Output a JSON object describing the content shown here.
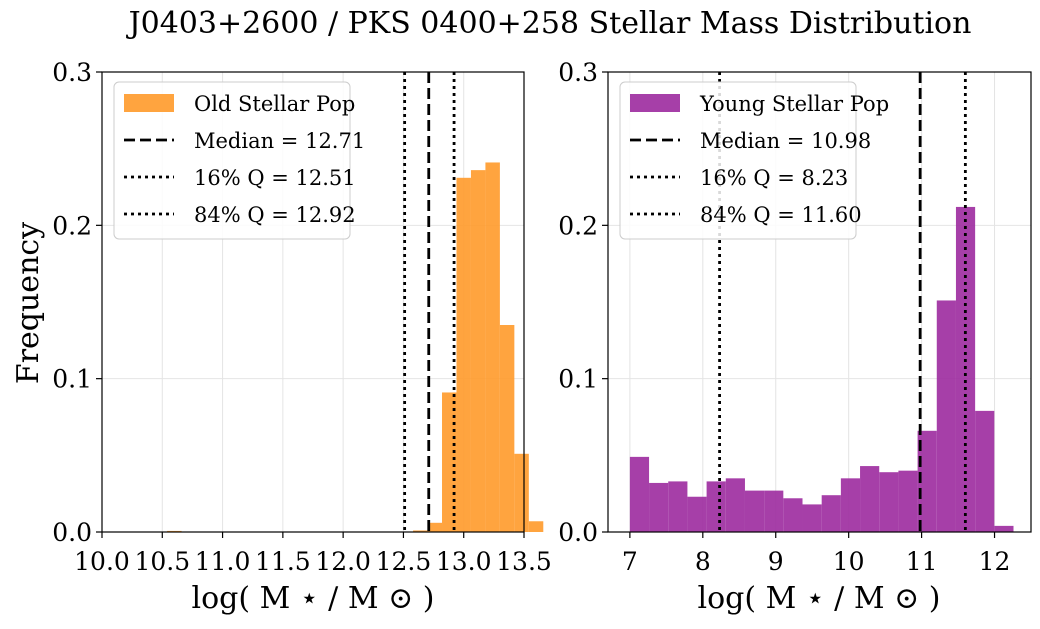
{
  "figure": {
    "title": "J0403+2600 / PKS 0400+258 Stellar Mass Distribution"
  },
  "chart_data": [
    {
      "type": "bar",
      "ylabel": "Frequency",
      "xlabel": "log( M ⋆ / M ⊙ )",
      "xlim": [
        10.0,
        13.5
      ],
      "ylim": [
        0.0,
        0.3
      ],
      "xticks": [
        "10.0",
        "10.5",
        "11.0",
        "11.5",
        "12.0",
        "12.5",
        "13.0",
        "13.5"
      ],
      "yticks": [
        "0.0",
        "0.1",
        "0.2",
        "0.3"
      ],
      "grid": true,
      "legend_position": "top-left",
      "histogram": {
        "name": "Old Stellar Pop",
        "color": "#ff9a2a",
        "bin_start": 10.06,
        "bin_width": 0.12,
        "values": [
          0.0,
          0.0,
          0.0,
          0.0,
          0.0007,
          0.0,
          0.0,
          0.0,
          0.0,
          0.0,
          0.0,
          0.0,
          0.0,
          0.0,
          0.0,
          0.0,
          0.0,
          0.0,
          0.0,
          0.0,
          0.0,
          0.001,
          0.006,
          0.091,
          0.231,
          0.236,
          0.241,
          0.135,
          0.051,
          0.007
        ]
      },
      "lines": [
        {
          "label": "Median = 12.71",
          "x": 12.71,
          "style": "dashed"
        },
        {
          "label": "16% Q = 12.51",
          "x": 12.51,
          "style": "dotted"
        },
        {
          "label": "84% Q = 12.92",
          "x": 12.92,
          "style": "dotted"
        }
      ]
    },
    {
      "type": "bar",
      "ylabel": "",
      "xlabel": "log( M ⋆ / M ⊙ )",
      "xlim": [
        6.7,
        12.5
      ],
      "ylim": [
        0.0,
        0.3
      ],
      "xticks": [
        "7",
        "8",
        "9",
        "10",
        "11",
        "12"
      ],
      "yticks": [
        "0.0",
        "0.1",
        "0.2",
        "0.3"
      ],
      "grid": true,
      "legend_position": "top-left",
      "histogram": {
        "name": "Young Stellar Pop",
        "color": "#9c2a9f",
        "bin_start": 7.0,
        "bin_width": 0.263,
        "values": [
          0.049,
          0.032,
          0.033,
          0.023,
          0.033,
          0.035,
          0.027,
          0.027,
          0.022,
          0.018,
          0.024,
          0.035,
          0.043,
          0.039,
          0.04,
          0.066,
          0.151,
          0.212,
          0.079,
          0.004
        ]
      },
      "lines": [
        {
          "label": "Median = 10.98",
          "x": 10.98,
          "style": "dashed"
        },
        {
          "label": "16% Q = 8.23",
          "x": 8.23,
          "style": "dotted"
        },
        {
          "label": "84% Q = 11.60",
          "x": 11.6,
          "style": "dotted"
        }
      ]
    }
  ]
}
